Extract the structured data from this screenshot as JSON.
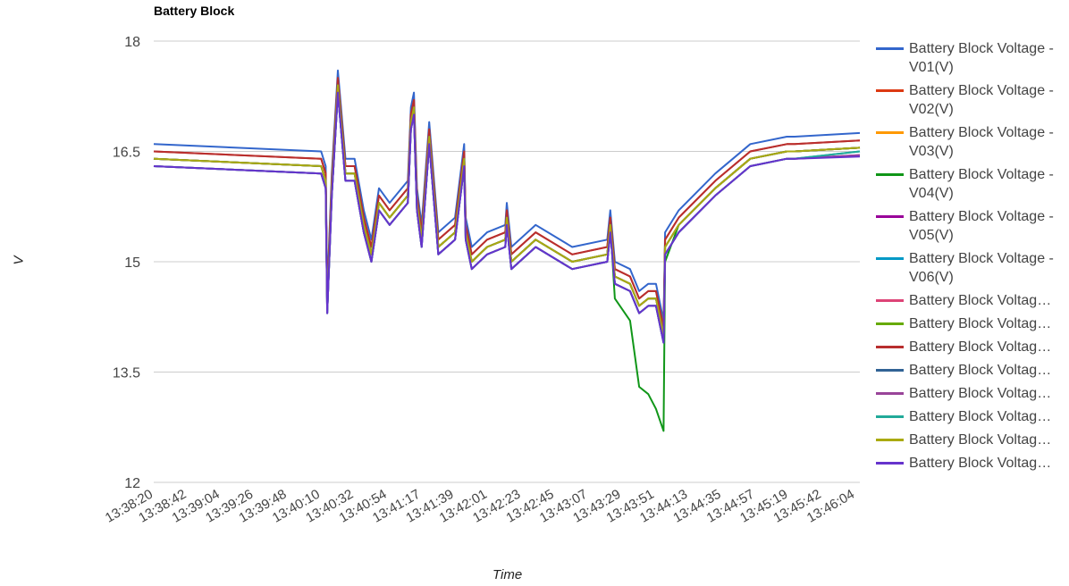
{
  "chart_data": {
    "type": "line",
    "title": "Battery Block",
    "xlabel": "Time",
    "ylabel": "V",
    "ylim": [
      12,
      18
    ],
    "yticks": [
      "18",
      "16.5",
      "15",
      "13.5",
      "12"
    ],
    "ytick_values": [
      18,
      16.5,
      15,
      13.5,
      12
    ],
    "xlim_seconds": [
      0,
      464
    ],
    "xticks": [
      "13:38:20",
      "13:38:42",
      "13:39:04",
      "13:39:26",
      "13:39:48",
      "13:40:10",
      "13:40:32",
      "13:40:54",
      "13:41:17",
      "13:41:39",
      "13:42:01",
      "13:42:23",
      "13:42:45",
      "13:43:07",
      "13:43:29",
      "13:43:51",
      "13:44:13",
      "13:44:35",
      "13:44:57",
      "13:45:19",
      "13:45:42",
      "13:46:04"
    ],
    "grid": true,
    "legend_position": "right",
    "x_seconds_from_start": [
      0,
      110,
      113,
      114,
      117,
      121,
      126,
      132,
      138,
      143,
      148,
      155,
      167,
      169,
      171,
      173,
      176,
      181,
      187,
      198,
      204,
      205,
      209,
      219,
      231,
      232,
      235,
      251,
      275,
      298,
      300,
      303,
      313,
      319,
      325,
      330,
      335,
      336,
      345,
      369,
      392,
      416,
      421,
      464
    ],
    "series": [
      {
        "name": "Battery Block Voltage - V01(V)",
        "label": "Battery Block Voltage - V01(V)",
        "color": "#3366cc",
        "values": [
          16.6,
          16.5,
          16.3,
          14.6,
          16.2,
          17.6,
          16.4,
          16.4,
          15.7,
          15.3,
          16.0,
          15.8,
          16.1,
          17.1,
          17.3,
          16.0,
          15.5,
          16.9,
          15.4,
          15.6,
          16.6,
          15.6,
          15.2,
          15.4,
          15.5,
          15.8,
          15.2,
          15.5,
          15.2,
          15.3,
          15.7,
          15.0,
          14.9,
          14.6,
          14.7,
          14.7,
          14.2,
          15.4,
          15.7,
          16.2,
          16.6,
          16.7,
          16.7,
          16.75
        ]
      },
      {
        "name": "Battery Block Voltage - V02(V)",
        "label": "Battery Block Voltage - V02(V)",
        "color": "#dc3912",
        "values": [
          16.5,
          16.4,
          16.2,
          14.5,
          16.1,
          17.5,
          16.3,
          16.3,
          15.6,
          15.2,
          15.9,
          15.7,
          16.0,
          17.0,
          17.2,
          15.9,
          15.4,
          16.8,
          15.3,
          15.5,
          16.5,
          15.5,
          15.1,
          15.3,
          15.4,
          15.7,
          15.1,
          15.4,
          15.1,
          15.2,
          15.6,
          14.9,
          14.8,
          14.5,
          14.6,
          14.6,
          14.1,
          15.3,
          15.6,
          16.1,
          16.5,
          16.6,
          16.6,
          16.65
        ]
      },
      {
        "name": "Battery Block Voltage - V03(V)",
        "label": "Battery Block Voltage - V03(V)",
        "color": "#ff9900",
        "values": [
          16.4,
          16.3,
          16.1,
          14.4,
          16.0,
          17.4,
          16.2,
          16.2,
          15.5,
          15.1,
          15.8,
          15.6,
          15.9,
          16.9,
          17.1,
          15.8,
          15.3,
          16.7,
          15.2,
          15.4,
          16.4,
          15.4,
          15.0,
          15.2,
          15.3,
          15.6,
          15.0,
          15.3,
          15.0,
          15.1,
          15.5,
          14.8,
          14.7,
          14.4,
          14.5,
          14.5,
          14.0,
          15.2,
          15.5,
          16.0,
          16.4,
          16.5,
          16.5,
          16.55
        ]
      },
      {
        "name": "Battery Block Voltage - V04(V)",
        "label": "Battery Block Voltage - V04(V)",
        "color": "#109618",
        "values": [
          16.4,
          16.3,
          16.1,
          14.4,
          16.0,
          17.4,
          16.2,
          16.2,
          15.5,
          15.1,
          15.8,
          15.6,
          15.9,
          16.9,
          17.1,
          15.8,
          15.3,
          16.7,
          15.2,
          15.4,
          16.4,
          15.4,
          15.0,
          15.2,
          15.3,
          15.6,
          15.0,
          15.3,
          15.0,
          15.1,
          15.5,
          14.5,
          14.2,
          13.3,
          13.2,
          13.0,
          12.7,
          15.0,
          15.5,
          16.0,
          16.4,
          16.5,
          16.5,
          16.55
        ]
      },
      {
        "name": "Battery Block Voltage - V05(V)",
        "label": "Battery Block Voltage - V05(V)",
        "color": "#990099",
        "values": [
          16.3,
          16.2,
          16.0,
          14.3,
          15.9,
          17.3,
          16.1,
          16.1,
          15.4,
          15.0,
          15.7,
          15.5,
          15.8,
          16.8,
          17.0,
          15.7,
          15.2,
          16.6,
          15.1,
          15.3,
          16.3,
          15.3,
          14.9,
          15.1,
          15.2,
          15.5,
          14.9,
          15.2,
          14.9,
          15.0,
          15.4,
          14.7,
          14.6,
          14.3,
          14.4,
          14.4,
          13.9,
          15.1,
          15.4,
          15.9,
          16.3,
          16.4,
          16.4,
          16.45
        ]
      },
      {
        "name": "Battery Block Voltage - V06(V)",
        "label": "Battery Block Voltage - V06(V)",
        "color": "#0099c6",
        "values": [
          16.3,
          16.2,
          16.0,
          14.3,
          15.9,
          17.3,
          16.1,
          16.1,
          15.4,
          15.0,
          15.7,
          15.5,
          15.8,
          16.8,
          17.0,
          15.7,
          15.2,
          16.6,
          15.1,
          15.3,
          16.3,
          15.3,
          14.9,
          15.1,
          15.2,
          15.5,
          14.9,
          15.2,
          14.9,
          15.0,
          15.4,
          14.7,
          14.6,
          14.3,
          14.4,
          14.4,
          13.9,
          15.1,
          15.4,
          15.9,
          16.3,
          16.4,
          16.4,
          16.5
        ]
      },
      {
        "name": "Battery Block Voltage…",
        "label": "Battery Block Voltage…",
        "color": "#dd4477",
        "values": [
          16.4,
          16.3,
          16.1,
          14.4,
          16.0,
          17.4,
          16.2,
          16.2,
          15.5,
          15.1,
          15.8,
          15.6,
          15.9,
          16.9,
          17.1,
          15.8,
          15.3,
          16.7,
          15.2,
          15.4,
          16.4,
          15.4,
          15.0,
          15.2,
          15.3,
          15.6,
          15.0,
          15.3,
          15.0,
          15.1,
          15.5,
          14.8,
          14.7,
          14.4,
          14.5,
          14.5,
          14.0,
          15.2,
          15.5,
          16.0,
          16.4,
          16.5,
          16.5,
          16.55
        ]
      },
      {
        "name": "Battery Block Voltage…",
        "label": "Battery Block Voltage…",
        "color": "#66aa00",
        "values": [
          16.4,
          16.3,
          16.1,
          14.4,
          16.0,
          17.4,
          16.2,
          16.2,
          15.5,
          15.1,
          15.8,
          15.6,
          15.9,
          16.9,
          17.1,
          15.8,
          15.3,
          16.7,
          15.2,
          15.4,
          16.4,
          15.4,
          15.0,
          15.2,
          15.3,
          15.6,
          15.0,
          15.3,
          15.0,
          15.1,
          15.5,
          14.8,
          14.7,
          14.4,
          14.5,
          14.5,
          14.0,
          15.2,
          15.5,
          16.0,
          16.4,
          16.5,
          16.5,
          16.55
        ]
      },
      {
        "name": "Battery Block Voltage…",
        "label": "Battery Block Voltage…",
        "color": "#b82e2e",
        "values": [
          16.5,
          16.4,
          16.2,
          14.5,
          16.1,
          17.5,
          16.3,
          16.3,
          15.6,
          15.2,
          15.9,
          15.7,
          16.0,
          17.0,
          17.2,
          15.9,
          15.4,
          16.8,
          15.3,
          15.5,
          16.5,
          15.5,
          15.1,
          15.3,
          15.4,
          15.7,
          15.1,
          15.4,
          15.1,
          15.2,
          15.6,
          14.9,
          14.8,
          14.5,
          14.6,
          14.6,
          14.1,
          15.3,
          15.6,
          16.1,
          16.5,
          16.6,
          16.6,
          16.65
        ]
      },
      {
        "name": "Battery Block Voltage…",
        "label": "Battery Block Voltage…",
        "color": "#316395",
        "values": [
          16.4,
          16.3,
          16.1,
          14.4,
          16.0,
          17.4,
          16.2,
          16.2,
          15.5,
          15.1,
          15.8,
          15.6,
          15.9,
          16.9,
          17.1,
          15.8,
          15.3,
          16.7,
          15.2,
          15.4,
          16.4,
          15.4,
          15.0,
          15.2,
          15.3,
          15.6,
          15.0,
          15.3,
          15.0,
          15.1,
          15.5,
          14.8,
          14.7,
          14.4,
          14.5,
          14.5,
          14.0,
          15.2,
          15.5,
          16.0,
          16.4,
          16.5,
          16.5,
          16.55
        ]
      },
      {
        "name": "Battery Block Voltage…",
        "label": "Battery Block Voltage…",
        "color": "#994499",
        "values": [
          16.3,
          16.2,
          16.0,
          14.3,
          15.9,
          17.3,
          16.1,
          16.1,
          15.4,
          15.0,
          15.7,
          15.5,
          15.8,
          16.8,
          17.0,
          15.7,
          15.2,
          16.6,
          15.1,
          15.3,
          16.3,
          15.3,
          14.9,
          15.1,
          15.2,
          15.5,
          14.9,
          15.2,
          14.9,
          15.0,
          15.4,
          14.7,
          14.6,
          14.3,
          14.4,
          14.4,
          13.9,
          15.1,
          15.4,
          15.9,
          16.3,
          16.4,
          16.4,
          16.45
        ]
      },
      {
        "name": "Battery Block Voltage…",
        "label": "Battery Block Voltage…",
        "color": "#22aa99",
        "values": [
          16.3,
          16.2,
          16.0,
          14.3,
          15.9,
          17.3,
          16.1,
          16.1,
          15.4,
          15.0,
          15.7,
          15.5,
          15.8,
          16.8,
          17.0,
          15.7,
          15.2,
          16.6,
          15.1,
          15.3,
          16.3,
          15.3,
          14.9,
          15.1,
          15.2,
          15.5,
          14.9,
          15.2,
          14.9,
          15.0,
          15.4,
          14.7,
          14.6,
          14.3,
          14.4,
          14.4,
          13.9,
          15.1,
          15.4,
          15.9,
          16.3,
          16.4,
          16.4,
          16.5
        ]
      },
      {
        "name": "Battery Block Voltage…",
        "label": "Battery Block Voltage…",
        "color": "#aaaa11",
        "values": [
          16.4,
          16.3,
          16.1,
          14.4,
          16.0,
          17.4,
          16.2,
          16.2,
          15.5,
          15.1,
          15.8,
          15.6,
          15.9,
          16.9,
          17.1,
          15.8,
          15.3,
          16.7,
          15.2,
          15.4,
          16.4,
          15.4,
          15.0,
          15.2,
          15.3,
          15.6,
          15.0,
          15.3,
          15.0,
          15.1,
          15.5,
          14.8,
          14.7,
          14.4,
          14.5,
          14.5,
          14.0,
          15.2,
          15.5,
          16.0,
          16.4,
          16.5,
          16.5,
          16.55
        ]
      },
      {
        "name": "Battery Block Voltage…",
        "label": "Battery Block Voltage…",
        "color": "#6633cc",
        "values": [
          16.3,
          16.2,
          16.0,
          14.3,
          15.9,
          17.3,
          16.1,
          16.1,
          15.4,
          15.0,
          15.7,
          15.5,
          15.8,
          16.8,
          17.0,
          15.7,
          15.2,
          16.6,
          15.1,
          15.3,
          16.3,
          15.3,
          14.9,
          15.1,
          15.2,
          15.5,
          14.9,
          15.2,
          14.9,
          15.0,
          15.4,
          14.7,
          14.6,
          14.3,
          14.4,
          14.4,
          13.9,
          15.1,
          15.4,
          15.9,
          16.3,
          16.4,
          16.4,
          16.43
        ]
      }
    ]
  }
}
